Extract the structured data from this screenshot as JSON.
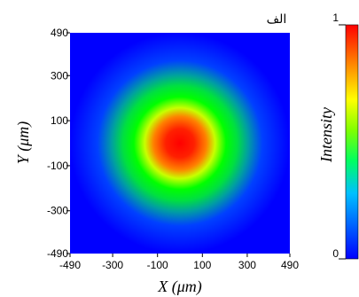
{
  "panel_label": "الف",
  "colorbar": {
    "label": "Intensity",
    "tick_labels": [
      "1",
      "0"
    ],
    "stops": [
      "#0000ff",
      "#0060ff",
      "#00c0ff",
      "#00ff60",
      "#80ff00",
      "#ffff00",
      "#ff8000",
      "#ff0000"
    ]
  },
  "chart_data": {
    "type": "heatmap",
    "title": "",
    "xlabel": "X (μm)",
    "ylabel": "Y (μm)",
    "xlim": [
      -490,
      490
    ],
    "ylim": [
      -490,
      490
    ],
    "x_ticks": [
      -490,
      -300,
      -100,
      100,
      300,
      490
    ],
    "y_ticks": [
      490,
      300,
      100,
      -100,
      -300,
      -490
    ],
    "x_tick_labels": [
      "-490",
      "-300",
      "-100",
      "100",
      "300",
      "490"
    ],
    "y_tick_labels": [
      "490",
      "300",
      "100",
      "-100",
      "-300",
      "-490"
    ],
    "colorscale_range": [
      0,
      1
    ],
    "peak_intensity": 1,
    "spot_center": [
      0,
      0
    ],
    "spot_half_width_um": 95,
    "grid": false
  }
}
